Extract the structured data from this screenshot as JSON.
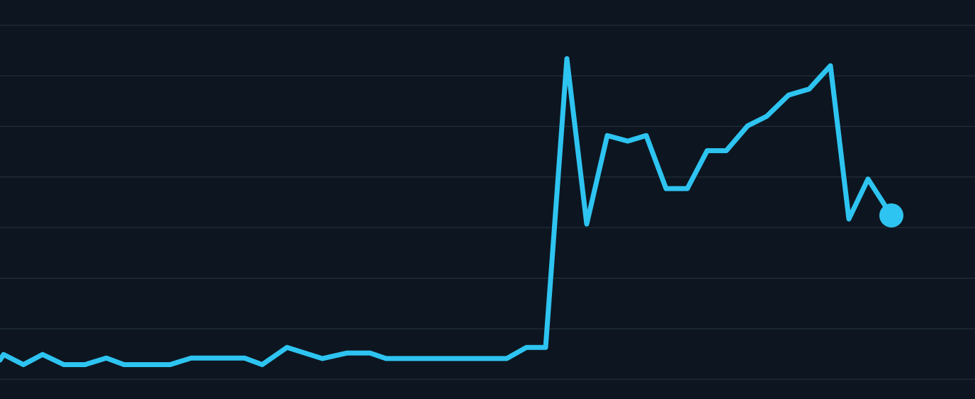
{
  "chart_data": {
    "type": "line",
    "x": [
      0,
      5,
      33,
      60,
      90,
      120,
      150,
      175,
      240,
      270,
      345,
      370,
      405,
      455,
      490,
      522,
      545,
      715,
      743,
      770,
      800,
      828,
      857,
      886,
      912,
      940,
      970,
      998,
      1025,
      1055,
      1082,
      1113,
      1142,
      1172,
      1198,
      1225,
      1258
    ],
    "series": [
      {
        "color": "#2ec4f1",
        "values": [
          0.38,
          0.49,
          0.29,
          0.49,
          0.29,
          0.29,
          0.42,
          0.29,
          0.29,
          0.42,
          0.42,
          0.29,
          0.63,
          0.41,
          0.52,
          0.52,
          0.41,
          0.41,
          0.63,
          0.63,
          6.34,
          3.07,
          4.82,
          4.71,
          4.82,
          3.77,
          3.77,
          4.52,
          4.52,
          5.01,
          5.2,
          5.62,
          5.74,
          6.2,
          3.17,
          3.96,
          3.24
        ]
      }
    ],
    "xlim": [
      0,
      1376
    ],
    "ylim": [
      -0.39,
      7.5
    ],
    "yticks": [
      0,
      1,
      2,
      3,
      4,
      5,
      6,
      7
    ],
    "grid": true,
    "grid_color": "#263340",
    "background": "#0d1620",
    "end_marker": true
  }
}
